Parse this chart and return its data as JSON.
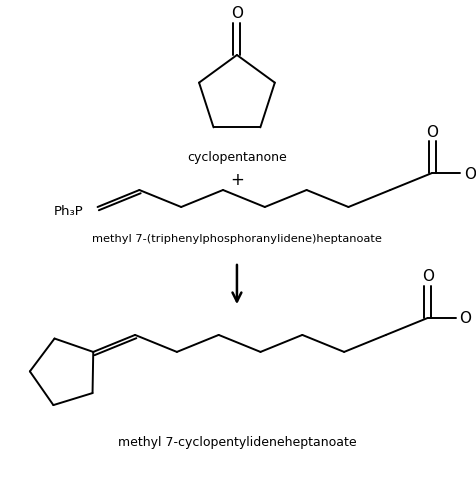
{
  "background_color": "#ffffff",
  "fig_width": 4.77,
  "fig_height": 4.9,
  "dpi": 100,
  "text_color": "#000000",
  "line_color": "#000000",
  "line_width": 1.4,
  "cyclopentanone_label": "cyclopentanone",
  "reagent_label": "methyl 7-(triphenylphosphoranylidene)heptanoate",
  "product_label": "methyl 7-cyclopentylideneheptanoate",
  "plus_sign": "+",
  "ph3p_label": "Ph₃P",
  "O_label": "O"
}
